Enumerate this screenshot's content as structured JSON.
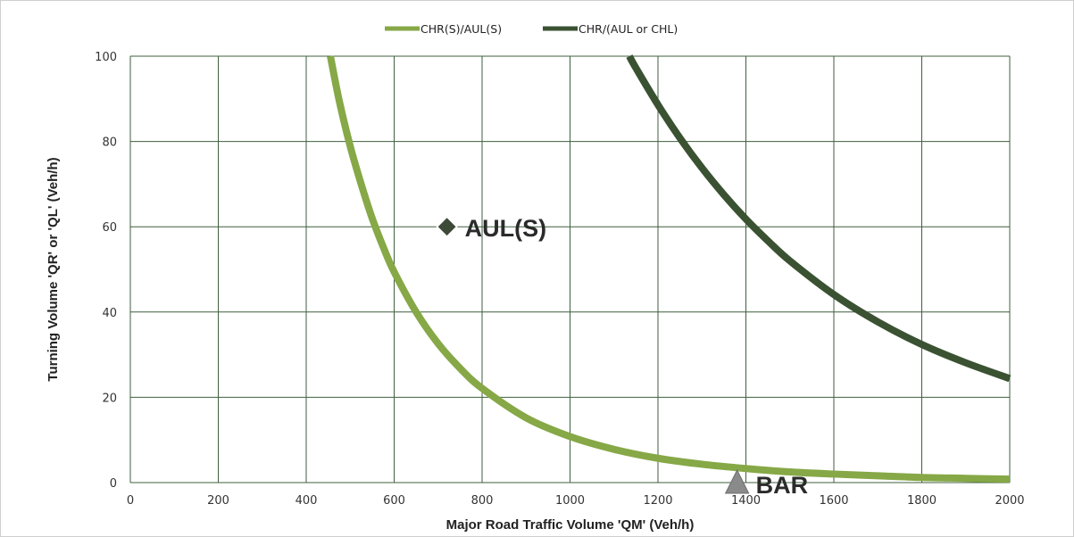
{
  "chart_data": {
    "type": "line",
    "title": "",
    "xlabel": "Major Road Traffic Volume 'QM' (Veh/h)",
    "ylabel": "Turning Volume 'QR' or 'QL' (Veh/h)",
    "xlim": [
      0,
      2000
    ],
    "ylim": [
      0,
      100
    ],
    "x_ticks": [
      "0",
      "200",
      "400",
      "600",
      "800",
      "1000",
      "1200",
      "1400",
      "1600",
      "1800",
      "2000"
    ],
    "y_ticks": [
      "0",
      "20",
      "40",
      "60",
      "80",
      "100"
    ],
    "grid": true,
    "legend_position": "top-center",
    "series": [
      {
        "name": "CHR(S)/AUL(S)",
        "color": "#86a847",
        "x": [
          455,
          475,
          500,
          525,
          550,
          575,
          600,
          650,
          700,
          750,
          800,
          900,
          1000,
          1100,
          1200,
          1300,
          1400,
          1500,
          1600,
          1700,
          1800,
          1900,
          2000
        ],
        "y": [
          100,
          89.6,
          78.9,
          70.0,
          62.0,
          55.3,
          49.4,
          40.0,
          32.6,
          26.8,
          22.1,
          15.2,
          10.8,
          7.8,
          5.7,
          4.3,
          3.3,
          2.5,
          2.0,
          1.6,
          1.2,
          1.0,
          0.8
        ]
      },
      {
        "name": "CHR/(AUL or CHL)",
        "color": "#3a5232",
        "x": [
          1135,
          1150,
          1200,
          1250,
          1300,
          1350,
          1400,
          1450,
          1500,
          1600,
          1700,
          1800,
          1900,
          2000
        ],
        "y": [
          100,
          97.2,
          88.6,
          80.8,
          73.8,
          67.5,
          61.8,
          56.7,
          52.0,
          44.1,
          37.7,
          32.4,
          28.1,
          24.4
        ]
      }
    ],
    "annotations": [
      {
        "label": "AUL(S)",
        "x": 720,
        "y": 60,
        "marker": "diamond",
        "color": "#3d4a38"
      },
      {
        "label": "BAR",
        "x": 1380,
        "y": 0,
        "marker": "triangle",
        "color": "#8a8a8a"
      }
    ]
  }
}
